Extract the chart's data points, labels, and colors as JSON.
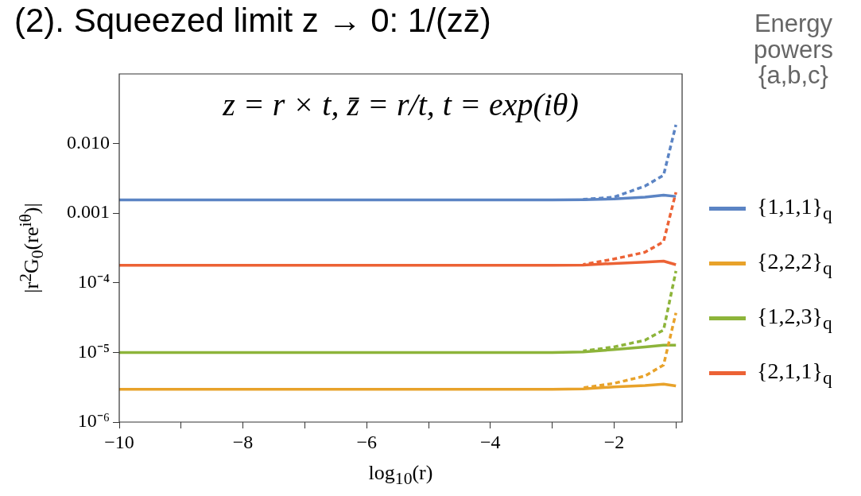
{
  "chart_data": {
    "type": "line",
    "title": "(2). Squeezed limit z → 0: 1/(zz̄)",
    "annotations": [
      "z = r × t, z̄ = r/t, t = exp(iθ)"
    ],
    "xlabel": "log$_{10}$(r)",
    "ylabel": "|r$^{2}$G$_{0}$(re$^{iθ}$)|",
    "legend_title": "Energy powers {a,b,c}",
    "legend": "right",
    "log": "y",
    "grid": false,
    "marker": "none",
    "xlim": [
      -10,
      -0.9
    ],
    "xticks": [
      -10,
      {
        "value": -9,
        "label": null
      },
      -8,
      {
        "value": -7,
        "label": null
      },
      -6,
      {
        "value": -5,
        "label": null
      },
      -4,
      {
        "value": -3,
        "label": null
      },
      -2,
      {
        "value": -1,
        "label": null
      }
    ],
    "ylim": [
      1e-06,
      0.1
    ],
    "yticks": [
      {
        "value": 1e-06,
        "label": "10⁻⁶"
      },
      {
        "value": 1e-05,
        "label": "10⁻⁵"
      },
      {
        "value": 0.0001,
        "label": "10⁻⁴"
      },
      {
        "value": 0.001,
        "label": "0.001"
      },
      {
        "value": 0.01,
        "label": "0.010"
      }
    ],
    "series": [
      {
        "name": "{1,1,1}$_{q}$",
        "type": "line",
        "line_style": "solid",
        "color": "#5b84c4",
        "x": [
          -10,
          -8,
          -6,
          -4,
          -3,
          -2.5,
          -2,
          -1.5,
          -1.2,
          -1
        ],
        "values": [
          0.00155,
          0.00155,
          0.00155,
          0.00155,
          0.00155,
          0.00156,
          0.0016,
          0.0017,
          0.00182,
          0.00174
        ]
      },
      {
        "name": "{2,2,2}$_{q}$",
        "type": "line",
        "line_style": "solid",
        "color": "#e8a22a",
        "x": [
          -10,
          -8,
          -6,
          -4,
          -3,
          -2.5,
          -2,
          -1.5,
          -1.2,
          -1
        ],
        "values": [
          2.95e-06,
          2.95e-06,
          2.95e-06,
          2.95e-06,
          2.95e-06,
          3e-06,
          3.2e-06,
          3.35e-06,
          3.5e-06,
          3.3e-06
        ]
      },
      {
        "name": "{1,2,3}$_{q}$",
        "type": "line",
        "line_style": "solid",
        "color": "#8db43a",
        "x": [
          -10,
          -8,
          -6,
          -4,
          -3,
          -2.5,
          -2,
          -1.5,
          -1.2,
          -1
        ],
        "values": [
          1e-05,
          1e-05,
          1e-05,
          1e-05,
          1e-05,
          1.02e-05,
          1.1e-05,
          1.2e-05,
          1.27e-05,
          1.27e-05
        ]
      },
      {
        "name": "{2,1,1}$_{q}$",
        "type": "line",
        "line_style": "solid",
        "color": "#ec6235",
        "x": [
          -10,
          -8,
          -6,
          -4,
          -3,
          -2.5,
          -2,
          -1.5,
          -1.2,
          -1
        ],
        "values": [
          0.000178,
          0.000178,
          0.000178,
          0.000178,
          0.000178,
          0.00018,
          0.00019,
          0.000198,
          0.000205,
          0.000182
        ]
      },
      {
        "type": "line",
        "line_style": "dashed",
        "color": "#5b84c4",
        "x": [
          -2.5,
          -2,
          -1.5,
          -1.2,
          -1
        ],
        "values": [
          0.00158,
          0.0017,
          0.00245,
          0.0035,
          0.0186
        ]
      },
      {
        "type": "line",
        "line_style": "dashed",
        "color": "#e8a22a",
        "x": [
          -2.5,
          -2,
          -1.5,
          -1.2,
          -1
        ],
        "values": [
          3.1e-06,
          3.6e-06,
          4.6e-06,
          6.6e-06,
          3.7e-05
        ]
      },
      {
        "type": "line",
        "line_style": "dashed",
        "color": "#8db43a",
        "x": [
          -2.5,
          -2,
          -1.5,
          -1.2,
          -1
        ],
        "values": [
          1.05e-05,
          1.2e-05,
          1.5e-05,
          2.1e-05,
          0.000148
        ]
      },
      {
        "type": "line",
        "line_style": "dashed",
        "color": "#ec6235",
        "x": [
          -2.5,
          -2,
          -1.5,
          -1.2,
          -1
        ],
        "values": [
          0.000183,
          0.00022,
          0.000275,
          0.00039,
          0.002
        ]
      }
    ]
  }
}
